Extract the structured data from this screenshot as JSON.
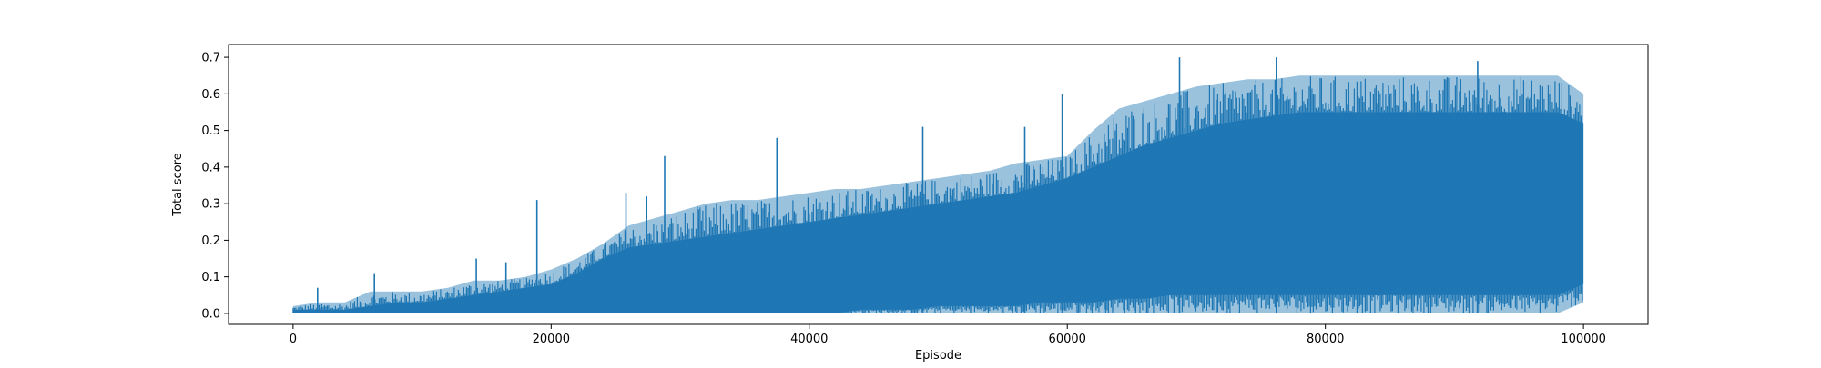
{
  "chart_data": {
    "type": "line",
    "title": "",
    "xlabel": "Episode",
    "ylabel": "Total score",
    "xlim": [
      -5000,
      105000
    ],
    "ylim": [
      -0.03,
      0.735
    ],
    "xticks": [
      0,
      20000,
      40000,
      60000,
      80000,
      100000
    ],
    "xtick_labels": [
      "0",
      "20000",
      "40000",
      "60000",
      "80000",
      "100000"
    ],
    "yticks": [
      0.0,
      0.1,
      0.2,
      0.3,
      0.4,
      0.5,
      0.6,
      0.7
    ],
    "ytick_labels": [
      "0.0",
      "0.1",
      "0.2",
      "0.3",
      "0.4",
      "0.5",
      "0.6",
      "0.7"
    ],
    "grid": false,
    "legend": false,
    "series_color": "#1f77b4",
    "series": [
      {
        "x": [
          0,
          2000,
          4000,
          6000,
          8000,
          10000,
          12000,
          14000,
          16000,
          18000,
          20000,
          22000,
          24000,
          26000,
          28000,
          30000,
          32000,
          34000,
          36000,
          38000,
          40000,
          42000,
          44000,
          46000,
          48000,
          50000,
          52000,
          54000,
          56000,
          58000,
          60000,
          62000,
          64000,
          66000,
          68000,
          70000,
          72000,
          74000,
          76000,
          78000,
          80000,
          82000,
          84000,
          86000,
          88000,
          90000,
          92000,
          94000,
          96000,
          98000,
          100000
        ],
        "y_upper": [
          0.02,
          0.03,
          0.03,
          0.06,
          0.06,
          0.06,
          0.07,
          0.09,
          0.09,
          0.1,
          0.12,
          0.15,
          0.19,
          0.24,
          0.26,
          0.28,
          0.3,
          0.31,
          0.31,
          0.32,
          0.33,
          0.34,
          0.34,
          0.35,
          0.36,
          0.37,
          0.38,
          0.39,
          0.41,
          0.42,
          0.43,
          0.5,
          0.56,
          0.58,
          0.6,
          0.62,
          0.63,
          0.64,
          0.64,
          0.65,
          0.65,
          0.65,
          0.65,
          0.65,
          0.65,
          0.65,
          0.65,
          0.65,
          0.65,
          0.65,
          0.6
        ],
        "y_lower": [
          0.0,
          0.0,
          0.0,
          0.0,
          0.0,
          0.0,
          0.0,
          0.0,
          0.0,
          0.0,
          0.0,
          0.0,
          0.0,
          0.0,
          0.0,
          0.0,
          0.0,
          0.0,
          0.0,
          0.0,
          0.0,
          0.0,
          0.0,
          0.0,
          0.0,
          0.0,
          0.0,
          0.0,
          0.0,
          0.0,
          0.0,
          0.0,
          0.0,
          0.0,
          0.0,
          0.0,
          0.0,
          0.0,
          0.0,
          0.0,
          0.0,
          0.0,
          0.0,
          0.0,
          0.0,
          0.0,
          0.0,
          0.0,
          0.0,
          0.0,
          0.03
        ],
        "y_fill_top": [
          0.01,
          0.01,
          0.01,
          0.02,
          0.03,
          0.03,
          0.04,
          0.05,
          0.06,
          0.07,
          0.08,
          0.11,
          0.15,
          0.18,
          0.19,
          0.2,
          0.21,
          0.22,
          0.23,
          0.24,
          0.25,
          0.26,
          0.27,
          0.28,
          0.29,
          0.3,
          0.31,
          0.32,
          0.33,
          0.35,
          0.37,
          0.4,
          0.43,
          0.46,
          0.48,
          0.5,
          0.52,
          0.53,
          0.54,
          0.55,
          0.55,
          0.55,
          0.55,
          0.55,
          0.55,
          0.55,
          0.55,
          0.55,
          0.55,
          0.55,
          0.52
        ],
        "y_fill_bottom": [
          0.0,
          0.0,
          0.0,
          0.0,
          0.0,
          0.0,
          0.0,
          0.0,
          0.0,
          0.0,
          0.0,
          0.0,
          0.0,
          0.0,
          0.0,
          0.0,
          0.0,
          0.0,
          0.0,
          0.0,
          0.0,
          0.0,
          0.01,
          0.01,
          0.01,
          0.02,
          0.02,
          0.02,
          0.02,
          0.03,
          0.03,
          0.03,
          0.04,
          0.04,
          0.05,
          0.05,
          0.05,
          0.05,
          0.05,
          0.05,
          0.05,
          0.05,
          0.05,
          0.05,
          0.05,
          0.05,
          0.05,
          0.05,
          0.05,
          0.05,
          0.08
        ]
      }
    ],
    "spikes": [
      {
        "x": 1900,
        "y": 0.07
      },
      {
        "x": 6300,
        "y": 0.11
      },
      {
        "x": 14200,
        "y": 0.15
      },
      {
        "x": 16500,
        "y": 0.14
      },
      {
        "x": 18900,
        "y": 0.31
      },
      {
        "x": 25800,
        "y": 0.33
      },
      {
        "x": 27400,
        "y": 0.32
      },
      {
        "x": 28800,
        "y": 0.43
      },
      {
        "x": 37500,
        "y": 0.48
      },
      {
        "x": 48800,
        "y": 0.51
      },
      {
        "x": 56700,
        "y": 0.51
      },
      {
        "x": 59600,
        "y": 0.6
      },
      {
        "x": 68700,
        "y": 0.7
      },
      {
        "x": 76200,
        "y": 0.7
      },
      {
        "x": 91800,
        "y": 0.69
      }
    ]
  }
}
